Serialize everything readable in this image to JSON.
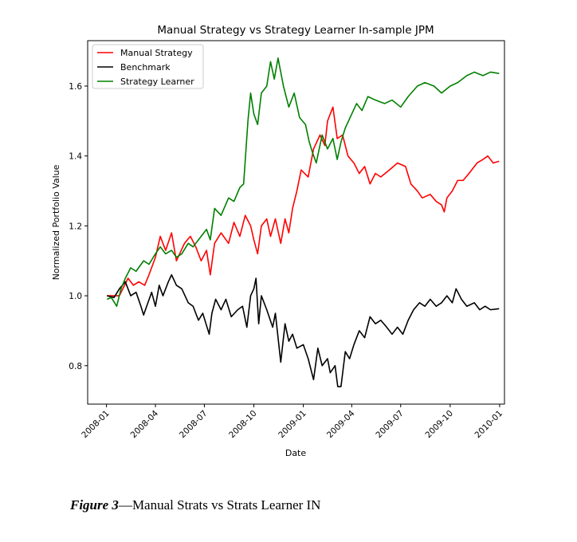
{
  "chart_data": {
    "type": "line",
    "title": "Manual Strategy vs Strategy Learner In-sample JPM",
    "xlabel": "Date",
    "ylabel": "Normalized Portfolio Value",
    "x_ticks": [
      "2008-01",
      "2008-04",
      "2008-07",
      "2008-10",
      "2009-01",
      "2009-04",
      "2009-07",
      "2009-10",
      "2010-01"
    ],
    "y_ticks": [
      "0.8",
      "1.0",
      "1.2",
      "1.4",
      "1.6"
    ],
    "xlim": [
      "2007-11-27",
      "2010-01-10"
    ],
    "ylim": [
      0.69,
      1.73
    ],
    "legend_position": "upper-left",
    "grid": false,
    "series": [
      {
        "name": "Manual Strategy",
        "color": "#ff0000",
        "points": [
          [
            "2008-01-02",
            1.0
          ],
          [
            "2008-01-25",
            1.0
          ],
          [
            "2008-02-10",
            1.05
          ],
          [
            "2008-02-20",
            1.03
          ],
          [
            "2008-03-01",
            1.04
          ],
          [
            "2008-03-12",
            1.03
          ],
          [
            "2008-03-20",
            1.06
          ],
          [
            "2008-04-01",
            1.11
          ],
          [
            "2008-04-10",
            1.17
          ],
          [
            "2008-04-20",
            1.13
          ],
          [
            "2008-05-01",
            1.18
          ],
          [
            "2008-05-10",
            1.1
          ],
          [
            "2008-05-25",
            1.15
          ],
          [
            "2008-06-05",
            1.17
          ],
          [
            "2008-06-15",
            1.14
          ],
          [
            "2008-06-25",
            1.1
          ],
          [
            "2008-07-05",
            1.13
          ],
          [
            "2008-07-12",
            1.06
          ],
          [
            "2008-07-20",
            1.15
          ],
          [
            "2008-08-01",
            1.18
          ],
          [
            "2008-08-15",
            1.15
          ],
          [
            "2008-08-25",
            1.21
          ],
          [
            "2008-09-05",
            1.17
          ],
          [
            "2008-09-15",
            1.23
          ],
          [
            "2008-09-25",
            1.2
          ],
          [
            "2008-10-01",
            1.16
          ],
          [
            "2008-10-08",
            1.12
          ],
          [
            "2008-10-15",
            1.2
          ],
          [
            "2008-10-25",
            1.22
          ],
          [
            "2008-11-01",
            1.17
          ],
          [
            "2008-11-10",
            1.22
          ],
          [
            "2008-11-20",
            1.15
          ],
          [
            "2008-11-28",
            1.22
          ],
          [
            "2008-12-05",
            1.18
          ],
          [
            "2008-12-12",
            1.25
          ],
          [
            "2008-12-20",
            1.3
          ],
          [
            "2008-12-28",
            1.36
          ],
          [
            "2009-01-10",
            1.34
          ],
          [
            "2009-01-20",
            1.42
          ],
          [
            "2009-02-01",
            1.46
          ],
          [
            "2009-02-10",
            1.43
          ],
          [
            "2009-02-15",
            1.5
          ],
          [
            "2009-02-25",
            1.54
          ],
          [
            "2009-03-05",
            1.45
          ],
          [
            "2009-03-15",
            1.46
          ],
          [
            "2009-03-25",
            1.4
          ],
          [
            "2009-04-05",
            1.38
          ],
          [
            "2009-04-15",
            1.35
          ],
          [
            "2009-04-25",
            1.37
          ],
          [
            "2009-05-05",
            1.32
          ],
          [
            "2009-05-15",
            1.35
          ],
          [
            "2009-05-25",
            1.34
          ],
          [
            "2009-06-10",
            1.36
          ],
          [
            "2009-06-25",
            1.38
          ],
          [
            "2009-07-10",
            1.37
          ],
          [
            "2009-07-20",
            1.32
          ],
          [
            "2009-08-01",
            1.3
          ],
          [
            "2009-08-10",
            1.28
          ],
          [
            "2009-08-25",
            1.29
          ],
          [
            "2009-09-05",
            1.27
          ],
          [
            "2009-09-15",
            1.26
          ],
          [
            "2009-09-20",
            1.24
          ],
          [
            "2009-09-25",
            1.28
          ],
          [
            "2009-10-05",
            1.3
          ],
          [
            "2009-10-15",
            1.33
          ],
          [
            "2009-10-25",
            1.33
          ],
          [
            "2009-11-05",
            1.35
          ],
          [
            "2009-11-20",
            1.38
          ],
          [
            "2009-12-01",
            1.39
          ],
          [
            "2009-12-10",
            1.4
          ],
          [
            "2009-12-20",
            1.38
          ],
          [
            "2009-12-31",
            1.385
          ]
        ]
      },
      {
        "name": "Benchmark",
        "color": "#000000",
        "points": [
          [
            "2008-01-02",
            1.0
          ],
          [
            "2008-01-15",
            0.995
          ],
          [
            "2008-01-25",
            1.02
          ],
          [
            "2008-02-05",
            1.04
          ],
          [
            "2008-02-15",
            1.0
          ],
          [
            "2008-02-25",
            1.01
          ],
          [
            "2008-03-05",
            0.97
          ],
          [
            "2008-03-10",
            0.945
          ],
          [
            "2008-03-18",
            0.98
          ],
          [
            "2008-03-25",
            1.01
          ],
          [
            "2008-04-01",
            0.97
          ],
          [
            "2008-04-08",
            1.03
          ],
          [
            "2008-04-15",
            1.0
          ],
          [
            "2008-04-25",
            1.04
          ],
          [
            "2008-05-01",
            1.06
          ],
          [
            "2008-05-10",
            1.03
          ],
          [
            "2008-05-20",
            1.02
          ],
          [
            "2008-06-01",
            0.98
          ],
          [
            "2008-06-10",
            0.97
          ],
          [
            "2008-06-20",
            0.93
          ],
          [
            "2008-06-28",
            0.95
          ],
          [
            "2008-07-10",
            0.89
          ],
          [
            "2008-07-15",
            0.95
          ],
          [
            "2008-07-22",
            0.99
          ],
          [
            "2008-08-01",
            0.96
          ],
          [
            "2008-08-10",
            0.99
          ],
          [
            "2008-08-20",
            0.94
          ],
          [
            "2008-09-01",
            0.96
          ],
          [
            "2008-09-10",
            0.97
          ],
          [
            "2008-09-18",
            0.91
          ],
          [
            "2008-09-25",
            1.0
          ],
          [
            "2008-10-01",
            1.02
          ],
          [
            "2008-10-05",
            1.05
          ],
          [
            "2008-10-10",
            0.92
          ],
          [
            "2008-10-15",
            1.0
          ],
          [
            "2008-10-25",
            0.96
          ],
          [
            "2008-11-05",
            0.91
          ],
          [
            "2008-11-10",
            0.95
          ],
          [
            "2008-11-20",
            0.81
          ],
          [
            "2008-11-28",
            0.92
          ],
          [
            "2008-12-05",
            0.87
          ],
          [
            "2008-12-12",
            0.89
          ],
          [
            "2008-12-20",
            0.85
          ],
          [
            "2009-01-01",
            0.86
          ],
          [
            "2009-01-10",
            0.82
          ],
          [
            "2009-01-20",
            0.76
          ],
          [
            "2009-01-28",
            0.85
          ],
          [
            "2009-02-05",
            0.8
          ],
          [
            "2009-02-15",
            0.82
          ],
          [
            "2009-02-20",
            0.78
          ],
          [
            "2009-03-01",
            0.8
          ],
          [
            "2009-03-06",
            0.74
          ],
          [
            "2009-03-12",
            0.74
          ],
          [
            "2009-03-20",
            0.84
          ],
          [
            "2009-03-28",
            0.82
          ],
          [
            "2009-04-05",
            0.86
          ],
          [
            "2009-04-15",
            0.9
          ],
          [
            "2009-04-25",
            0.88
          ],
          [
            "2009-05-05",
            0.94
          ],
          [
            "2009-05-15",
            0.92
          ],
          [
            "2009-05-25",
            0.93
          ],
          [
            "2009-06-05",
            0.91
          ],
          [
            "2009-06-15",
            0.89
          ],
          [
            "2009-06-25",
            0.91
          ],
          [
            "2009-07-05",
            0.89
          ],
          [
            "2009-07-15",
            0.93
          ],
          [
            "2009-07-25",
            0.96
          ],
          [
            "2009-08-05",
            0.98
          ],
          [
            "2009-08-15",
            0.97
          ],
          [
            "2009-08-25",
            0.99
          ],
          [
            "2009-09-05",
            0.97
          ],
          [
            "2009-09-15",
            0.98
          ],
          [
            "2009-09-25",
            1.0
          ],
          [
            "2009-10-05",
            0.98
          ],
          [
            "2009-10-12",
            1.02
          ],
          [
            "2009-10-22",
            0.99
          ],
          [
            "2009-11-01",
            0.97
          ],
          [
            "2009-11-15",
            0.98
          ],
          [
            "2009-11-25",
            0.96
          ],
          [
            "2009-12-05",
            0.97
          ],
          [
            "2009-12-15",
            0.96
          ],
          [
            "2009-12-31",
            0.963
          ]
        ]
      },
      {
        "name": "Strategy Learner",
        "color": "#008000",
        "points": [
          [
            "2008-01-02",
            0.99
          ],
          [
            "2008-01-10",
            0.995
          ],
          [
            "2008-01-20",
            0.97
          ],
          [
            "2008-01-28",
            1.02
          ],
          [
            "2008-02-05",
            1.05
          ],
          [
            "2008-02-15",
            1.08
          ],
          [
            "2008-02-25",
            1.07
          ],
          [
            "2008-03-10",
            1.1
          ],
          [
            "2008-03-20",
            1.09
          ],
          [
            "2008-04-01",
            1.12
          ],
          [
            "2008-04-10",
            1.14
          ],
          [
            "2008-04-20",
            1.12
          ],
          [
            "2008-05-01",
            1.13
          ],
          [
            "2008-05-10",
            1.11
          ],
          [
            "2008-05-20",
            1.12
          ],
          [
            "2008-06-01",
            1.15
          ],
          [
            "2008-06-10",
            1.14
          ],
          [
            "2008-06-25",
            1.17
          ],
          [
            "2008-07-05",
            1.19
          ],
          [
            "2008-07-12",
            1.16
          ],
          [
            "2008-07-20",
            1.25
          ],
          [
            "2008-08-01",
            1.23
          ],
          [
            "2008-08-15",
            1.28
          ],
          [
            "2008-08-25",
            1.27
          ],
          [
            "2008-09-05",
            1.31
          ],
          [
            "2008-09-12",
            1.32
          ],
          [
            "2008-09-20",
            1.5
          ],
          [
            "2008-09-25",
            1.58
          ],
          [
            "2008-10-01",
            1.52
          ],
          [
            "2008-10-08",
            1.49
          ],
          [
            "2008-10-15",
            1.58
          ],
          [
            "2008-10-25",
            1.6
          ],
          [
            "2008-11-01",
            1.67
          ],
          [
            "2008-11-08",
            1.62
          ],
          [
            "2008-11-15",
            1.68
          ],
          [
            "2008-11-25",
            1.6
          ],
          [
            "2008-12-05",
            1.54
          ],
          [
            "2008-12-15",
            1.58
          ],
          [
            "2008-12-25",
            1.51
          ],
          [
            "2009-01-05",
            1.49
          ],
          [
            "2009-01-12",
            1.44
          ],
          [
            "2009-01-18",
            1.41
          ],
          [
            "2009-01-25",
            1.38
          ],
          [
            "2009-02-05",
            1.46
          ],
          [
            "2009-02-15",
            1.42
          ],
          [
            "2009-02-25",
            1.45
          ],
          [
            "2009-03-05",
            1.39
          ],
          [
            "2009-03-12",
            1.44
          ],
          [
            "2009-03-20",
            1.48
          ],
          [
            "2009-04-01",
            1.52
          ],
          [
            "2009-04-10",
            1.55
          ],
          [
            "2009-04-20",
            1.53
          ],
          [
            "2009-05-01",
            1.57
          ],
          [
            "2009-05-15",
            1.56
          ],
          [
            "2009-06-01",
            1.55
          ],
          [
            "2009-06-15",
            1.56
          ],
          [
            "2009-07-01",
            1.54
          ],
          [
            "2009-07-15",
            1.57
          ],
          [
            "2009-08-01",
            1.6
          ],
          [
            "2009-08-15",
            1.61
          ],
          [
            "2009-09-01",
            1.6
          ],
          [
            "2009-09-15",
            1.58
          ],
          [
            "2009-10-01",
            1.6
          ],
          [
            "2009-10-15",
            1.61
          ],
          [
            "2009-11-01",
            1.63
          ],
          [
            "2009-11-15",
            1.64
          ],
          [
            "2009-12-01",
            1.63
          ],
          [
            "2009-12-15",
            1.64
          ],
          [
            "2009-12-31",
            1.636
          ]
        ]
      }
    ]
  },
  "caption": {
    "figure_label": "Figure 3",
    "text": "—Manual Strats vs Strats Learner IN"
  }
}
